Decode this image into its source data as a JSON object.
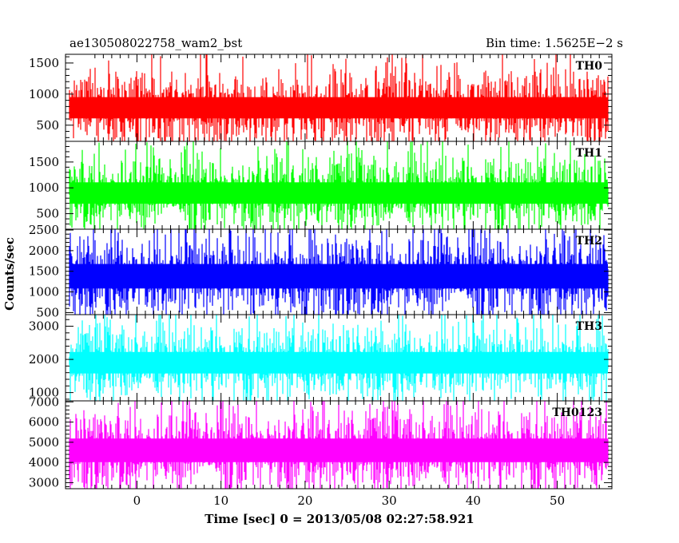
{
  "header": {
    "left_title": "ae130508022758_wam2_bst",
    "right_title": "Bin time: 1.5625E−2 s"
  },
  "chart_data": {
    "type": "line",
    "xlabel": "Time [sec] 0 = 2013/05/08 02:27:58.921",
    "ylabel": "Counts/sec",
    "xlim": [
      -8.5,
      56.5
    ],
    "data_x_range": [
      -8,
      56
    ],
    "x_ticks": [
      0,
      10,
      20,
      30,
      40,
      50
    ],
    "x_tick_labels": [
      "0",
      "10",
      "20",
      "30",
      "40",
      "50"
    ],
    "panels": [
      {
        "label": "TH0",
        "color": "#ff0000",
        "ylim": [
          240,
          1640
        ],
        "yticks": [
          500,
          1000,
          1500
        ],
        "ytick_labels": [
          "500",
          "1000",
          "1500"
        ],
        "minor_step": 100,
        "signal": {
          "mean": 780,
          "spread": 190,
          "min": 120,
          "max": 1700
        }
      },
      {
        "label": "TH1",
        "color": "#00ff00",
        "ylim": [
          200,
          1900
        ],
        "yticks": [
          500,
          1000,
          1500
        ],
        "ytick_labels": [
          "500",
          "1000",
          "1500"
        ],
        "minor_step": 100,
        "signal": {
          "mean": 900,
          "spread": 230,
          "min": 150,
          "max": 2000
        }
      },
      {
        "label": "TH2",
        "color": "#0000ff",
        "ylim": [
          450,
          2520
        ],
        "yticks": [
          500,
          1000,
          1500,
          2000,
          2500
        ],
        "ytick_labels": [
          "500",
          "1000",
          "1500",
          "2000",
          "2500"
        ],
        "minor_step": 100,
        "signal": {
          "mean": 1380,
          "spread": 330,
          "min": 350,
          "max": 2700
        }
      },
      {
        "label": "TH3",
        "color": "#00ffff",
        "ylim": [
          750,
          3350
        ],
        "yticks": [
          1000,
          2000,
          3000
        ],
        "ytick_labels": [
          "1000",
          "2000",
          "3000"
        ],
        "minor_step": 200,
        "signal": {
          "mean": 1900,
          "spread": 360,
          "min": 600,
          "max": 3500
        }
      },
      {
        "label": "TH0123",
        "color": "#ff00ff",
        "ylim": [
          2700,
          7050
        ],
        "yticks": [
          3000,
          4000,
          5000,
          6000,
          7000
        ],
        "ytick_labels": [
          "3000",
          "4000",
          "5000",
          "6000",
          "7000"
        ],
        "minor_step": 200,
        "signal": {
          "mean": 4600,
          "spread": 650,
          "min": 2500,
          "max": 7300
        }
      }
    ],
    "grid": false,
    "legend": "none"
  }
}
